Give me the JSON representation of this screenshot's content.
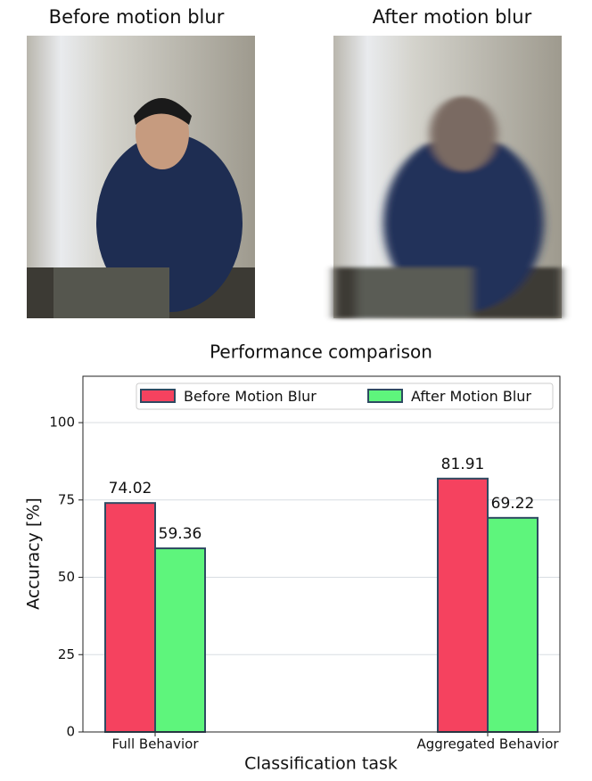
{
  "panels": [
    {
      "title": "Before motion blur"
    },
    {
      "title": "After motion blur"
    }
  ],
  "chart_data": {
    "type": "bar",
    "title": "Performance comparison",
    "x_label": "Classification task",
    "y_label": "Accuracy [%]",
    "categories": [
      "Full Behavior",
      "Aggregated Behavior"
    ],
    "series": [
      {
        "name": "Before Motion Blur",
        "color": "#f5425f",
        "values": [
          74.02,
          81.91
        ]
      },
      {
        "name": "After Motion Blur",
        "color": "#5ef57c",
        "values": [
          59.36,
          69.22
        ]
      }
    ],
    "edge_color": "#2e4a62",
    "ylim": [
      0,
      115
    ],
    "yticks": [
      0,
      25,
      50,
      75,
      100
    ],
    "grid": true,
    "legend": "upper right"
  }
}
